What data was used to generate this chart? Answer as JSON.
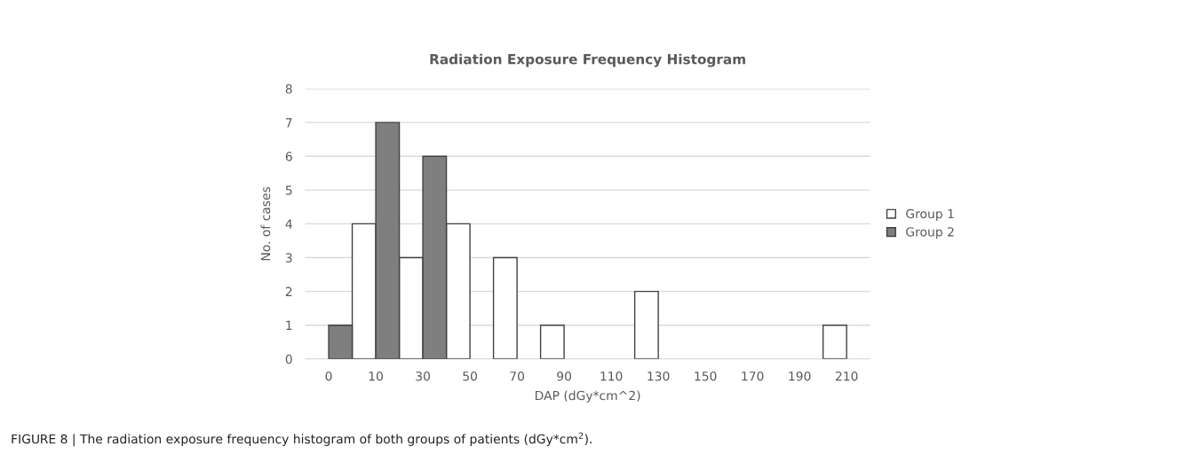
{
  "chart_data": {
    "type": "bar",
    "title": "Radiation Exposure Frequency Histogram",
    "xlabel": "DAP (dGy*cm^2)",
    "ylabel": "No. of cases",
    "categories": [
      "0",
      "10",
      "30",
      "50",
      "70",
      "90",
      "110",
      "130",
      "150",
      "170",
      "190",
      "210"
    ],
    "series": [
      {
        "name": "Group 1",
        "color": "#ffffff",
        "values": [
          0,
          4,
          3,
          4,
          3,
          1,
          0,
          2,
          0,
          0,
          0,
          1
        ]
      },
      {
        "name": "Group 2",
        "color": "#7f7f7f",
        "values": [
          1,
          7,
          6,
          0,
          0,
          0,
          0,
          0,
          0,
          0,
          0,
          0
        ]
      }
    ],
    "ylim": [
      0,
      8
    ],
    "yticks": [
      0,
      1,
      2,
      3,
      4,
      5,
      6,
      7,
      8
    ],
    "grid": "y",
    "legend": "right",
    "annotations": [
      "FIGURE 8 | The radiation exposure frequency histogram of both groups of patients (dGy*cm$^{2}$)."
    ]
  }
}
